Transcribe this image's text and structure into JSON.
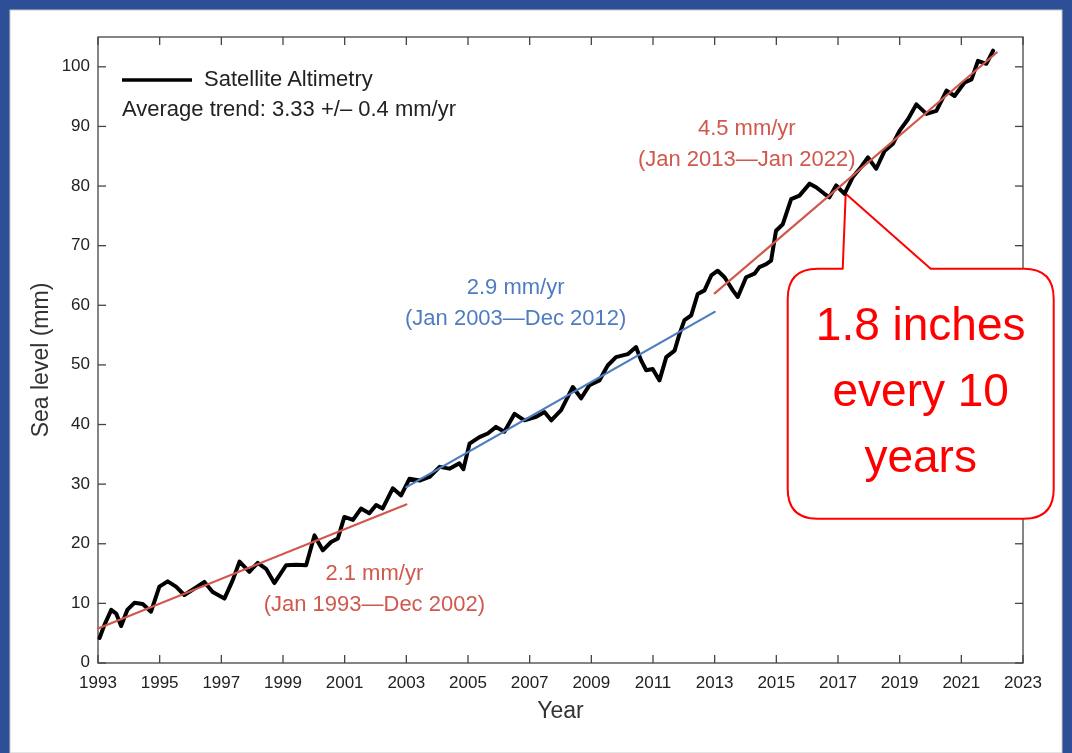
{
  "chart_data": {
    "type": "line",
    "xlabel": "Year",
    "ylabel": "Sea level (mm)",
    "xlim": [
      1993,
      2023
    ],
    "xticks": [
      1993,
      1995,
      1997,
      1999,
      2001,
      2003,
      2005,
      2007,
      2009,
      2011,
      2013,
      2015,
      2017,
      2019,
      2021,
      2023
    ],
    "ylim": [
      0,
      105
    ],
    "yticks": [
      0,
      10,
      20,
      30,
      40,
      50,
      60,
      70,
      80,
      90,
      100
    ],
    "legend": "top left",
    "x": [
      1993.05,
      1993.21,
      1993.43,
      1993.59,
      1993.75,
      1993.95,
      1994.18,
      1994.45,
      1994.72,
      1994.99,
      1995.26,
      1995.53,
      1995.8,
      1996.13,
      1996.45,
      1996.72,
      1997.1,
      1997.37,
      1997.59,
      1997.91,
      1998.18,
      1998.45,
      1998.72,
      1999.1,
      1999.43,
      1999.75,
      2000.02,
      2000.29,
      2000.56,
      2000.78,
      2000.99,
      2001.27,
      2001.53,
      2001.8,
      2002.02,
      2002.23,
      2002.56,
      2002.83,
      2003.1,
      2003.43,
      2003.75,
      2004.08,
      2004.4,
      2004.72,
      2004.85,
      2005.05,
      2005.37,
      2005.64,
      2005.91,
      2006.18,
      2006.51,
      2006.83,
      2007.21,
      2007.48,
      2007.7,
      2008.02,
      2008.4,
      2008.67,
      2008.94,
      2009.26,
      2009.53,
      2009.8,
      2010.18,
      2010.45,
      2010.61,
      2010.78,
      2010.99,
      2011.21,
      2011.43,
      2011.7,
      2011.86,
      2012.02,
      2012.24,
      2012.45,
      2012.67,
      2012.89,
      2013.1,
      2013.32,
      2013.59,
      2013.75,
      2014.02,
      2014.29,
      2014.45,
      2014.67,
      2014.83,
      2014.99,
      2015.21,
      2015.48,
      2015.75,
      2016.08,
      2016.29,
      2016.56,
      2016.72,
      2016.94,
      2017.21,
      2017.48,
      2017.75,
      2017.97,
      2018.24,
      2018.51,
      2018.78,
      2019.0,
      2019.27,
      2019.54,
      2019.87,
      2020.19,
      2020.52,
      2020.78,
      2021.11,
      2021.33,
      2021.54,
      2021.81,
      2022.03
    ],
    "series": [
      {
        "name": "Satellite Altimetry",
        "color": "#000000",
        "values": [
          4.2,
          6.4,
          8.9,
          8.3,
          6.2,
          8.9,
          10.1,
          9.9,
          8.6,
          12.8,
          13.7,
          12.8,
          11.4,
          12.5,
          13.6,
          11.9,
          10.8,
          13.9,
          17.0,
          15.3,
          16.8,
          15.8,
          13.4,
          16.4,
          16.5,
          16.4,
          21.4,
          18.9,
          20.3,
          20.9,
          24.5,
          24.0,
          25.9,
          25.1,
          26.5,
          25.9,
          29.3,
          28.1,
          30.9,
          30.6,
          31.2,
          32.9,
          32.6,
          33.5,
          32.5,
          36.8,
          37.9,
          38.5,
          39.6,
          38.8,
          41.8,
          40.7,
          41.3,
          42.1,
          40.7,
          42.4,
          46.3,
          44.4,
          46.6,
          47.4,
          49.9,
          51.3,
          51.8,
          53.0,
          50.8,
          49.1,
          49.3,
          47.4,
          51.3,
          52.4,
          55.2,
          57.5,
          58.3,
          61.9,
          62.5,
          65.0,
          65.8,
          64.7,
          62.5,
          61.4,
          64.7,
          65.3,
          66.4,
          66.9,
          67.5,
          72.5,
          73.6,
          77.8,
          78.4,
          80.4,
          79.8,
          78.7,
          78.1,
          80.1,
          78.7,
          81.5,
          83.2,
          84.8,
          82.9,
          85.9,
          87.1,
          89.3,
          91.2,
          93.7,
          92.1,
          92.6,
          96.0,
          95.1,
          97.4,
          97.9,
          101.0,
          100.5,
          102.7
        ]
      },
      {
        "name": "2.1 mm/yr (Jan 1993—Dec 2002)",
        "color": "#d0584c",
        "x": [
          1993,
          2003
        ],
        "values": [
          5.8,
          26.6
        ]
      },
      {
        "name": "2.9 mm/yr (Jan 2003—Dec 2012)",
        "color": "#4f7cc0",
        "x": [
          2003,
          2013
        ],
        "values": [
          29.5,
          58.9
        ]
      },
      {
        "name": "4.5 mm/yr (Jan 2013—Jan 2022)",
        "color": "#d0584c",
        "x": [
          2013,
          2022.15
        ],
        "values": [
          62.0,
          102.4
        ]
      }
    ],
    "annotations": [
      "Average trend: 3.33 +/– 0.4 mm/yr",
      {
        "text": "1.8 inches every 10 years",
        "x": 2017.25,
        "y": 78.7
      }
    ]
  }
}
